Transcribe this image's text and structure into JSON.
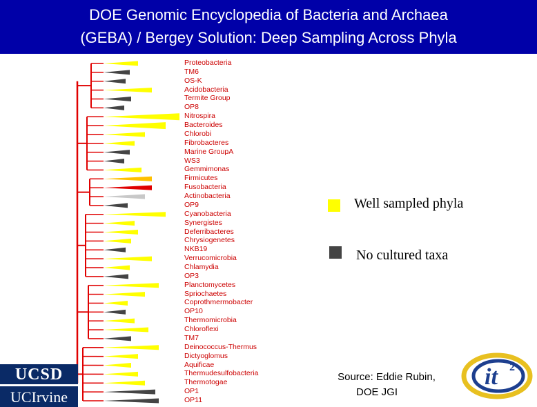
{
  "title": {
    "line1": "DOE Genomic Encyclopedia of Bacteria and Archaea",
    "line2": "(GEBA) / Bergey Solution: Deep Sampling Across Phyla"
  },
  "colors": {
    "header_bg": "#0000a8",
    "tree_line": "#e00000",
    "well_sampled": "#ffff00",
    "no_cultured": "#444444",
    "label_text": "#cc0000",
    "logo_bg": "#0a2a66"
  },
  "phyla": [
    {
      "name": "Proteobacteria",
      "status": "sampled"
    },
    {
      "name": "TM6",
      "status": "uncultured"
    },
    {
      "name": "OS-K",
      "status": "uncultured"
    },
    {
      "name": "Acidobacteria",
      "status": "sampled"
    },
    {
      "name": "Termite Group",
      "status": "uncultured"
    },
    {
      "name": "OP8",
      "status": "uncultured"
    },
    {
      "name": "Nitrospira",
      "status": "sampled"
    },
    {
      "name": "Bacteroides",
      "status": "sampled"
    },
    {
      "name": "Chlorobi",
      "status": "sampled"
    },
    {
      "name": "Fibrobacteres",
      "status": "sampled"
    },
    {
      "name": "Marine GroupA",
      "status": "uncultured"
    },
    {
      "name": "WS3",
      "status": "uncultured"
    },
    {
      "name": "Gemmimonas",
      "status": "sampled"
    },
    {
      "name": "Firmicutes",
      "status": "firmicutes"
    },
    {
      "name": "Fusobacteria",
      "status": "fuso"
    },
    {
      "name": "Actinobacteria",
      "status": "actino"
    },
    {
      "name": "OP9",
      "status": "uncultured"
    },
    {
      "name": "Cyanobacteria",
      "status": "sampled"
    },
    {
      "name": "Synergistes",
      "status": "sampled"
    },
    {
      "name": "Deferribacteres",
      "status": "sampled"
    },
    {
      "name": "Chrysiogenetes",
      "status": "sampled"
    },
    {
      "name": "NKB19",
      "status": "uncultured"
    },
    {
      "name": "Verrucomicrobia",
      "status": "sampled"
    },
    {
      "name": "Chlamydia",
      "status": "sampled"
    },
    {
      "name": "OP3",
      "status": "uncultured"
    },
    {
      "name": "Planctomycetes",
      "status": "sampled"
    },
    {
      "name": "Spriochaetes",
      "status": "sampled"
    },
    {
      "name": "Coprothmermobacter",
      "status": "sampled"
    },
    {
      "name": "OP10",
      "status": "uncultured"
    },
    {
      "name": "Thermomicrobia",
      "status": "sampled"
    },
    {
      "name": "Chloroflexi",
      "status": "sampled"
    },
    {
      "name": "TM7",
      "status": "uncultured"
    },
    {
      "name": "Deinococcus-Thermus",
      "status": "sampled"
    },
    {
      "name": "Dictyoglomus",
      "status": "sampled"
    },
    {
      "name": "Aquificae",
      "status": "sampled"
    },
    {
      "name": "Thermudesulfobacteria",
      "status": "sampled"
    },
    {
      "name": "Thermotogae",
      "status": "sampled"
    },
    {
      "name": "OP1",
      "status": "uncultured"
    },
    {
      "name": "OP11",
      "status": "uncultured"
    }
  ],
  "legend": {
    "well_sampled": "Well sampled phyla",
    "no_cultured": "No cultured taxa"
  },
  "source": {
    "line1": "Source: Eddie Rubin,",
    "line2": "DOE JGI"
  },
  "logos": {
    "ucsd": "UCSD",
    "uci": "UCIrvine",
    "it2": "it"
  }
}
